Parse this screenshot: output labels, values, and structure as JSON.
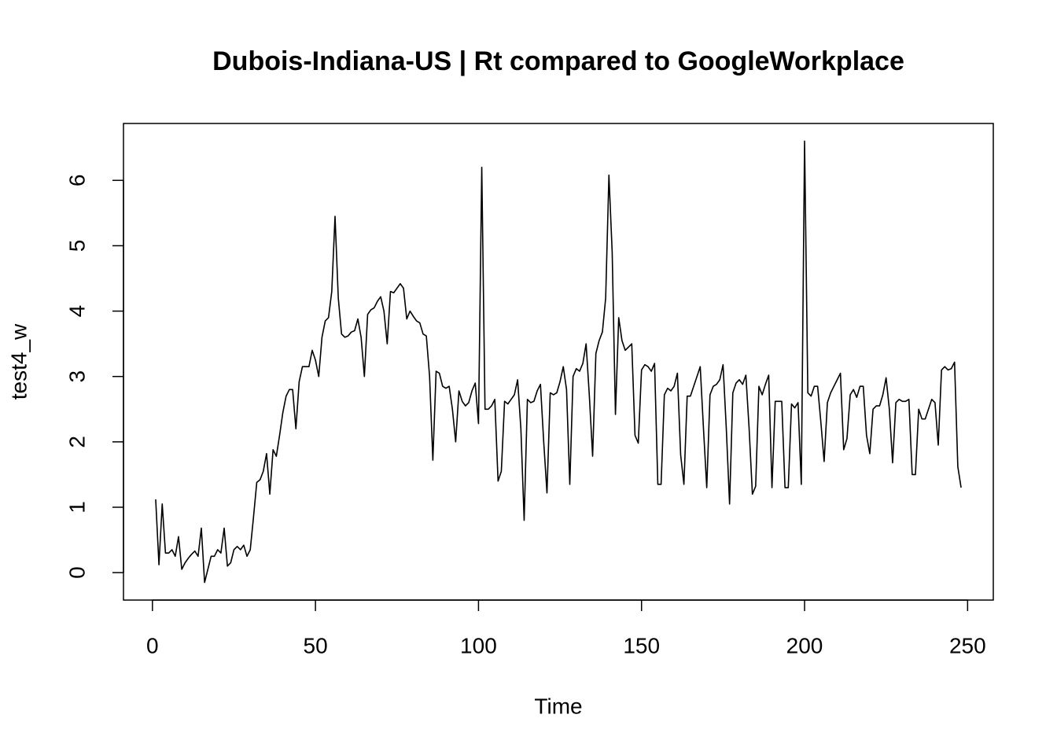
{
  "chart_data": {
    "type": "line",
    "title": "Dubois-Indiana-US | Rt compared to GoogleWorkplace",
    "xlabel": "Time",
    "ylabel": "test4_w",
    "color": "#000000",
    "x": [
      1,
      2,
      3,
      4,
      5,
      6,
      7,
      8,
      9,
      10,
      11,
      12,
      13,
      14,
      15,
      16,
      17,
      18,
      19,
      20,
      21,
      22,
      23,
      24,
      25,
      26,
      27,
      28,
      29,
      30,
      31,
      32,
      33,
      34,
      35,
      36,
      37,
      38,
      39,
      40,
      41,
      42,
      43,
      44,
      45,
      46,
      47,
      48,
      49,
      50,
      51,
      52,
      53,
      54,
      55,
      56,
      57,
      58,
      59,
      60,
      61,
      62,
      63,
      64,
      65,
      66,
      67,
      68,
      69,
      70,
      71,
      72,
      73,
      74,
      75,
      76,
      77,
      78,
      79,
      80,
      81,
      82,
      83,
      84,
      85,
      86,
      87,
      88,
      89,
      90,
      91,
      92,
      93,
      94,
      95,
      96,
      97,
      98,
      99,
      100,
      101,
      102,
      103,
      104,
      105,
      106,
      107,
      108,
      109,
      110,
      111,
      112,
      113,
      114,
      115,
      116,
      117,
      118,
      119,
      120,
      121,
      122,
      123,
      124,
      125,
      126,
      127,
      128,
      129,
      130,
      131,
      132,
      133,
      134,
      135,
      136,
      137,
      138,
      139,
      140,
      141,
      142,
      143,
      144,
      145,
      146,
      147,
      148,
      149,
      150,
      151,
      152,
      153,
      154,
      155,
      156,
      157,
      158,
      159,
      160,
      161,
      162,
      163,
      164,
      165,
      166,
      167,
      168,
      169,
      170,
      171,
      172,
      173,
      174,
      175,
      176,
      177,
      178,
      179,
      180,
      181,
      182,
      183,
      184,
      185,
      186,
      187,
      188,
      189,
      190,
      191,
      192,
      193,
      194,
      195,
      196,
      197,
      198,
      199,
      200,
      201,
      202,
      203,
      204,
      205,
      206,
      207,
      208,
      209,
      210,
      211,
      212,
      213,
      214,
      215,
      216,
      217,
      218,
      219,
      220,
      221,
      222,
      223,
      224,
      225,
      226,
      227,
      228,
      229,
      230,
      231,
      232,
      233,
      234,
      235,
      236,
      237,
      238,
      239,
      240,
      241,
      242,
      243,
      244,
      245,
      246,
      247,
      248
    ],
    "values": [
      1.12,
      0.12,
      1.05,
      0.3,
      0.3,
      0.35,
      0.25,
      0.55,
      0.05,
      0.15,
      0.22,
      0.28,
      0.33,
      0.25,
      0.68,
      -0.15,
      0.05,
      0.25,
      0.25,
      0.35,
      0.3,
      0.68,
      0.1,
      0.15,
      0.35,
      0.4,
      0.35,
      0.42,
      0.25,
      0.35,
      0.85,
      1.38,
      1.42,
      1.55,
      1.82,
      1.2,
      1.88,
      1.78,
      2.1,
      2.45,
      2.7,
      2.8,
      2.8,
      2.2,
      2.92,
      3.15,
      3.15,
      3.15,
      3.4,
      3.25,
      3.0,
      3.6,
      3.85,
      3.9,
      4.3,
      5.45,
      4.2,
      3.65,
      3.6,
      3.62,
      3.68,
      3.7,
      3.88,
      3.6,
      3.0,
      3.95,
      4.02,
      4.05,
      4.15,
      4.22,
      4.0,
      3.5,
      4.3,
      4.28,
      4.35,
      4.42,
      4.35,
      3.88,
      4.0,
      3.92,
      3.85,
      3.82,
      3.65,
      3.62,
      3.0,
      1.72,
      3.08,
      3.05,
      2.85,
      2.82,
      2.85,
      2.5,
      2.0,
      2.78,
      2.62,
      2.55,
      2.6,
      2.78,
      2.9,
      2.28,
      6.2,
      2.5,
      2.5,
      2.55,
      2.65,
      1.4,
      1.55,
      2.62,
      2.58,
      2.65,
      2.72,
      2.95,
      2.2,
      0.8,
      2.65,
      2.6,
      2.62,
      2.78,
      2.88,
      2.0,
      1.22,
      2.75,
      2.72,
      2.75,
      2.92,
      3.15,
      2.8,
      1.35,
      3.0,
      3.12,
      3.08,
      3.2,
      3.5,
      2.7,
      1.78,
      3.35,
      3.55,
      3.68,
      4.2,
      6.08,
      4.9,
      2.42,
      3.9,
      3.55,
      3.4,
      3.45,
      3.5,
      2.1,
      1.98,
      3.1,
      3.18,
      3.15,
      3.08,
      3.2,
      1.35,
      1.35,
      2.72,
      2.82,
      2.78,
      2.85,
      3.05,
      1.8,
      1.35,
      2.7,
      2.7,
      2.85,
      3.0,
      3.15,
      2.2,
      1.3,
      2.72,
      2.85,
      2.88,
      2.95,
      3.18,
      2.2,
      1.05,
      2.75,
      2.9,
      2.95,
      2.88,
      3.02,
      2.2,
      1.2,
      1.32,
      2.85,
      2.72,
      2.88,
      3.02,
      1.3,
      2.62,
      2.62,
      2.62,
      1.3,
      1.3,
      2.58,
      2.52,
      2.6,
      1.35,
      6.6,
      2.75,
      2.7,
      2.85,
      2.85,
      2.3,
      1.7,
      2.6,
      2.75,
      2.85,
      2.95,
      3.05,
      1.88,
      2.05,
      2.72,
      2.8,
      2.68,
      2.85,
      2.85,
      2.1,
      1.82,
      2.5,
      2.55,
      2.55,
      2.72,
      2.98,
      2.5,
      1.68,
      2.6,
      2.65,
      2.62,
      2.62,
      2.65,
      1.5,
      1.5,
      2.5,
      2.35,
      2.35,
      2.5,
      2.65,
      2.6,
      1.95,
      3.1,
      3.15,
      3.1,
      3.12,
      3.22,
      1.62,
      1.3
    ],
    "xlim": [
      -8.88,
      257.88
    ],
    "xticks": [
      0,
      50,
      100,
      150,
      200,
      250
    ],
    "ylim": [
      -0.42,
      6.87
    ],
    "yticks": [
      0,
      1,
      2,
      3,
      4,
      5,
      6
    ]
  }
}
